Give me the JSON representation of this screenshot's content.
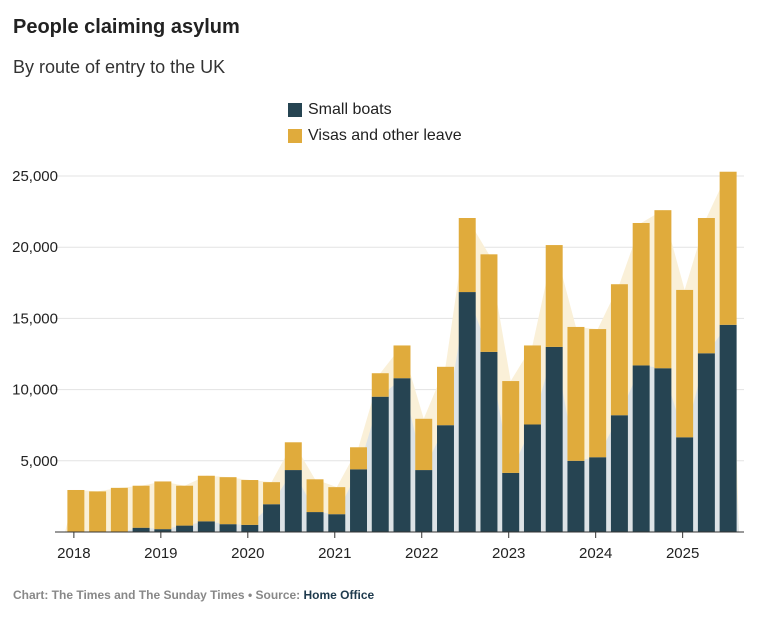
{
  "chart_data": {
    "type": "bar",
    "stacked": true,
    "title": "People claiming asylum",
    "subtitle": "By route of entry to the UK",
    "xlabel": "",
    "ylabel": "",
    "ylim": [
      0,
      25000
    ],
    "yticks": [
      "5,000",
      "10,000",
      "15,000",
      "20,000",
      "25,000"
    ],
    "ytick_values": [
      5000,
      10000,
      15000,
      20000,
      25000
    ],
    "xticks": [
      "2018",
      "2019",
      "2020",
      "2021",
      "2022",
      "2023",
      "2024",
      "2025"
    ],
    "categories": [
      "2018 Q1",
      "2018 Q2",
      "2018 Q3",
      "2018 Q4",
      "2019 Q1",
      "2019 Q2",
      "2019 Q3",
      "2019 Q4",
      "2020 Q1",
      "2020 Q2",
      "2020 Q3",
      "2020 Q4",
      "2021 Q1",
      "2021 Q2",
      "2021 Q3",
      "2021 Q4",
      "2022 Q1",
      "2022 Q2",
      "2022 Q3",
      "2022 Q4",
      "2023 Q1",
      "2023 Q2",
      "2023 Q3",
      "2023 Q4",
      "2024 Q1",
      "2024 Q2",
      "2024 Q3",
      "2024 Q4",
      "2025 Q1",
      "2025 Q2",
      "2025 Q3"
    ],
    "series": [
      {
        "name": "Small boats",
        "color": "#264452",
        "values": [
          0,
          0,
          0,
          300,
          200,
          450,
          750,
          550,
          500,
          1950,
          4350,
          1400,
          1250,
          4400,
          9500,
          10800,
          4350,
          7500,
          16850,
          12650,
          4150,
          7550,
          13000,
          5000,
          5250,
          8200,
          11700,
          11500,
          6650,
          12550,
          14550
        ]
      },
      {
        "name": "Visas and other leave",
        "color": "#e0ab3c",
        "values": [
          2950,
          2850,
          3100,
          2950,
          3350,
          2800,
          3200,
          3300,
          3150,
          1550,
          1950,
          2300,
          1900,
          1550,
          1650,
          2300,
          3600,
          4100,
          5200,
          6850,
          6450,
          5550,
          7150,
          9400,
          9000,
          9200,
          10000,
          11100,
          10350,
          9500,
          10750
        ]
      }
    ],
    "grid": true,
    "legend_position": "top-center",
    "source": {
      "prefix": "Chart: The Times and The Sunday Times • Source: ",
      "name": "Home Office"
    }
  }
}
